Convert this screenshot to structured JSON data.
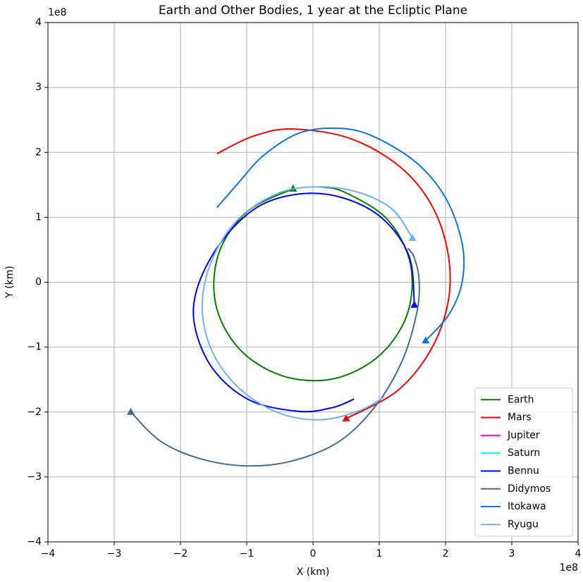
{
  "chart_data": {
    "type": "line",
    "title": "Earth and Other Bodies, 1 year at the Ecliptic Plane",
    "x_label": "X (km)",
    "y_label": "Y (km)",
    "x_offset": "1e8",
    "y_offset": "1e8",
    "xlim": [
      -4,
      4
    ],
    "ylim": [
      -4,
      4
    ],
    "xticks": [
      {
        "value": -4,
        "label": "−4"
      },
      {
        "value": -3,
        "label": "−3"
      },
      {
        "value": -2,
        "label": "−2"
      },
      {
        "value": -1,
        "label": "−1"
      },
      0,
      1,
      2,
      3,
      4
    ],
    "yticks": [
      {
        "value": -4,
        "label": "−4"
      },
      {
        "value": -3,
        "label": "−3"
      },
      {
        "value": -2,
        "label": "−2"
      },
      {
        "value": -1,
        "label": "−1"
      },
      0,
      1,
      2,
      3,
      4
    ],
    "grid": true,
    "legend": "lower right",
    "series": [
      {
        "name": "Earth",
        "color": "#008000",
        "x": [
          -0.3,
          -0.99,
          -1.42,
          -1.47,
          -1.12,
          -0.47,
          0.3,
          0.99,
          1.42,
          1.47,
          1.12,
          0.47,
          0.1
        ],
        "y": [
          1.44,
          1.09,
          0.45,
          -0.33,
          -1.02,
          -1.44,
          -1.49,
          -1.14,
          -0.5,
          0.28,
          0.97,
          1.39,
          1.47
        ]
      },
      {
        "name": "Mars",
        "color": "#ff0000",
        "x": [
          0.5,
          1.3,
          1.85,
          2.07,
          1.9,
          1.4,
          0.6,
          -0.3,
          -0.9,
          -1.45
        ],
        "y": [
          -2.1,
          -1.65,
          -0.9,
          0.0,
          0.95,
          1.7,
          2.2,
          2.36,
          2.25,
          1.98
        ]
      },
      {
        "name": "Jupiter",
        "color": "#ff00ff",
        "x": [],
        "y": []
      },
      {
        "name": "Saturn",
        "color": "#00ffff",
        "x": [],
        "y": []
      },
      {
        "name": "Bennu",
        "color": "#0000ff",
        "x": [
          1.53,
          1.45,
          1.05,
          0.45,
          -0.2,
          -0.85,
          -1.4,
          -1.75,
          -1.78,
          -1.5,
          -0.95,
          -0.2,
          0.3,
          0.62
        ],
        "y": [
          -0.35,
          0.4,
          0.98,
          1.3,
          1.36,
          1.15,
          0.6,
          -0.1,
          -0.7,
          -1.35,
          -1.82,
          -1.99,
          -1.93,
          -1.8
        ]
      },
      {
        "name": "Didymos",
        "color": "#466c8f",
        "x": [
          -2.75,
          -2.3,
          -1.7,
          -1.0,
          -0.3,
          0.4,
          0.95,
          1.35,
          1.57,
          1.6,
          1.52,
          1.43
        ],
        "y": [
          -2.0,
          -2.45,
          -2.72,
          -2.83,
          -2.75,
          -2.45,
          -1.9,
          -1.2,
          -0.45,
          0.05,
          0.4,
          0.52
        ]
      },
      {
        "name": "Itokawa",
        "color": "#0a75e8",
        "x": [
          1.7,
          2.05,
          2.25,
          2.25,
          2.0,
          1.55,
          0.9,
          0.4,
          -0.2,
          -0.75,
          -1.15,
          -1.45
        ],
        "y": [
          -0.9,
          -0.5,
          0.0,
          0.6,
          1.3,
          1.85,
          2.25,
          2.37,
          2.3,
          1.95,
          1.5,
          1.15
        ]
      },
      {
        "name": "Ryugu",
        "color": "#6fb1f0",
        "x": [
          1.5,
          1.2,
          0.7,
          0.1,
          -0.5,
          -1.1,
          -1.5,
          -1.67,
          -1.55,
          -1.15,
          -0.55,
          0.1,
          0.7,
          1.07
        ],
        "y": [
          0.68,
          1.12,
          1.38,
          1.47,
          1.38,
          1.0,
          0.4,
          -0.3,
          -1.0,
          -1.6,
          -2.0,
          -2.12,
          -1.98,
          -1.77
        ]
      }
    ]
  }
}
